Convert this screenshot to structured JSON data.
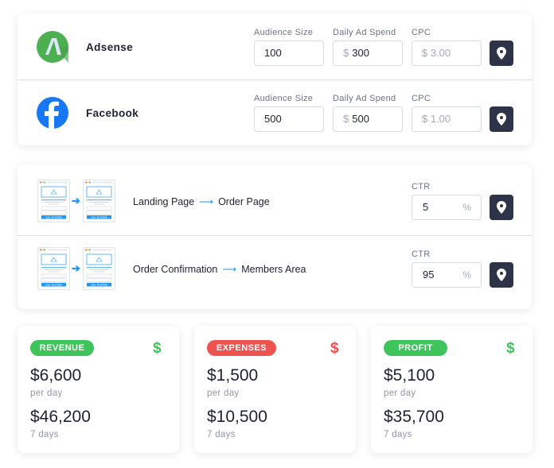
{
  "sources": [
    {
      "name": "Adsense",
      "icon": "adsense-icon",
      "audience_label": "Audience Size",
      "audience": "100",
      "spend_label": "Daily Ad Spend",
      "spend_prefix": "$",
      "spend": "300",
      "cpc_label": "CPC",
      "cpc": "$ 3.00"
    },
    {
      "name": "Facebook",
      "icon": "facebook-icon",
      "audience_label": "Audience Size",
      "audience": "500",
      "spend_label": "Daily Ad Spend",
      "spend_prefix": "$",
      "spend": "500",
      "cpc_label": "CPC",
      "cpc": "$ 1.00"
    }
  ],
  "funnel": [
    {
      "from": "Landing Page",
      "arrow": "⟶",
      "to": "Order Page",
      "ctr_label": "CTR",
      "ctr": "5",
      "unit": "%"
    },
    {
      "from": "Order Confirmation",
      "arrow": "⟶",
      "to": "Members Area",
      "ctr_label": "CTR",
      "ctr": "95",
      "unit": "%"
    }
  ],
  "mockup_cta": "CALL TO ACTION",
  "summary": [
    {
      "badge": "REVENUE",
      "color": "#3ec45a",
      "icon": "$",
      "daily": "$6,600",
      "daily_label": "per day",
      "weekly": "$46,200",
      "weekly_label": "7 days"
    },
    {
      "badge": "EXPENSES",
      "color": "#ef5350",
      "icon": "$",
      "daily": "$1,500",
      "daily_label": "per day",
      "weekly": "$10,500",
      "weekly_label": "7 days"
    },
    {
      "badge": "PROFIT",
      "color": "#3ec45a",
      "icon": "$",
      "daily": "$5,100",
      "daily_label": "per day",
      "weekly": "$35,700",
      "weekly_label": "7 days"
    }
  ],
  "colors": {
    "pin_button": "#2e3447",
    "accent": "#2196f3",
    "adsense": "#4caf50",
    "facebook": "#1877f2"
  }
}
